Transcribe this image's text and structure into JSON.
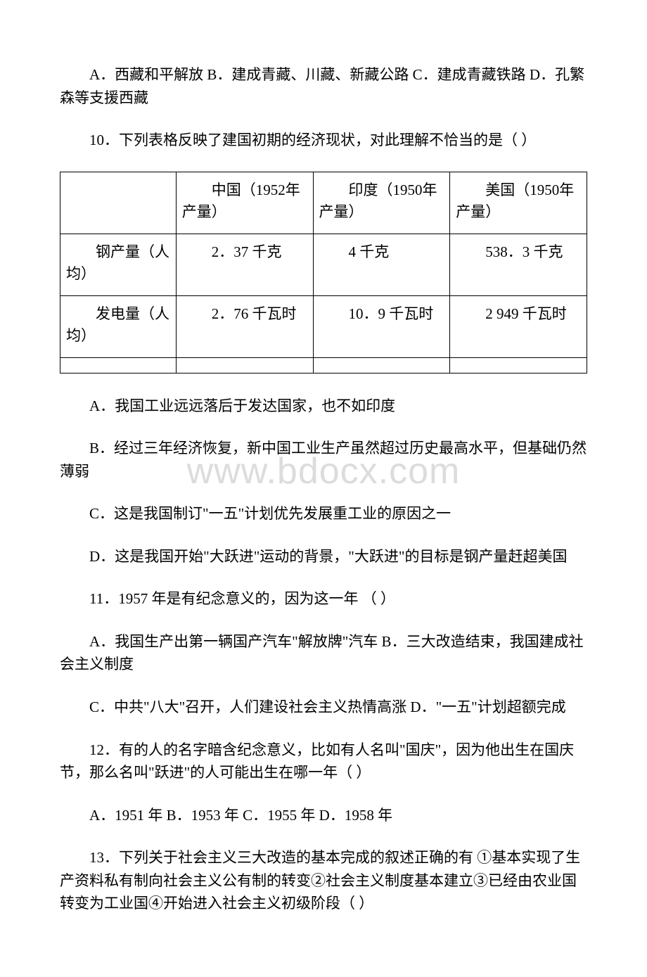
{
  "q9_option_a": "A．西藏和平解放 B．建成青藏、川藏、新藏公路 C．建成青藏铁路 D．孔繁森等支援西藏",
  "q10_stem": "10．下列表格反映了建国初期的经济现状，对此理解不恰当的是（ ）",
  "table": {
    "headers": {
      "blank": "",
      "china": "中国（1952年产量）",
      "india": "印度（1950年产量）",
      "usa": "美国（1950年产量）"
    },
    "rows": [
      {
        "label": "钢产量（人均）",
        "china": "2．37 千克",
        "india": "4 千克",
        "usa": "538．3 千克"
      },
      {
        "label": "发电量（人均）",
        "china": "2．76 千瓦时",
        "india": "10．9 千瓦时",
        "usa": "2 949 千瓦时"
      }
    ]
  },
  "q10_opt_a": "A．我国工业远远落后于发达国家，也不如印度",
  "q10_opt_b": "B．经过三年经济恢复，新中国工业生产虽然超过历史最高水平，但基础仍然薄弱",
  "q10_opt_c": "C．这是我国制订\"一五\"计划优先发展重工业的原因之一",
  "q10_opt_d": "D．这是我国开始\"大跃进\"运动的背景，\"大跃进\"的目标是钢产量赶超美国",
  "q11_stem": "11．1957 年是有纪念意义的，因为这一年 （ ）",
  "q11_opt_ab": "A．我国生产出第一辆国产汽车\"解放牌\"汽车 B．三大改造结束，我国建成社会主义制度",
  "q11_opt_cd": "C．中共\"八大\"召开，人们建设社会主义热情高涨 D．\"一五\"计划超额完成",
  "q12_stem": "12．有的人的名字暗含纪念意义，比如有人名叫\"国庆\"，因为他出生在国庆节，那么名叫\"跃进\"的人可能出生在哪一年（ ）",
  "q12_opts": "A．1951 年 B．1953 年 C．1955 年 D．1958 年",
  "q13_stem": "13．下列关于社会主义三大改造的基本完成的叙述正确的有 ①基本实现了生产资料私有制向社会主义公有制的转变②社会主义制度基本建立③已经由农业国转变为工业国④开始进入社会主义初级阶段（ ）",
  "watermark_text": "www.bdocx.com"
}
